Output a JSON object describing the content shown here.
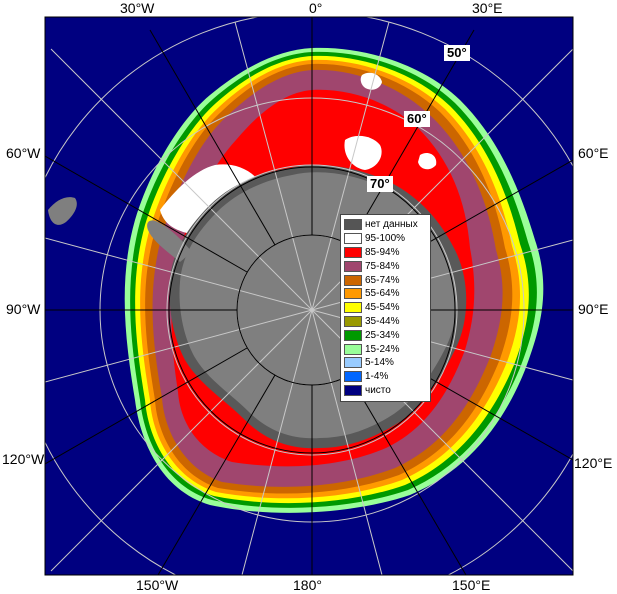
{
  "map": {
    "colors": {
      "ocean": "#000080",
      "land": "#7f7f7f",
      "ice_shelf_dark": "#595959",
      "ice_95_100": "#ffffff",
      "ice_85_94": "#ff0000",
      "ice_75_84": "#a0466e",
      "ice_65_74": "#cc6600",
      "ice_55_64": "#ff9900",
      "ice_45_54": "#ffff00",
      "ice_35_44": "#999900",
      "ice_25_34": "#009900",
      "ice_15_24": "#99ff99",
      "ice_5_14": "#99ccff",
      "ice_1_4": "#0066ff",
      "grid": "#c8c8c8",
      "meridian_major": "#000000"
    },
    "longitude_labels": {
      "w30": "30°W",
      "e0": "0°",
      "e30": "30°E",
      "w60": "60°W",
      "e60": "60°E",
      "w90": "90°W",
      "e90": "90°E",
      "w120": "120°W",
      "e120": "120°E",
      "w150": "150°W",
      "s180": "180°",
      "e150": "150°E"
    },
    "latitude_labels": {
      "lat50": "50°",
      "lat60": "60°",
      "lat70": "70°"
    }
  },
  "legend": {
    "title": "нет данных",
    "items": [
      {
        "label": "нет данных",
        "color": "#555555"
      },
      {
        "label": "95-100%",
        "color": "#ffffff"
      },
      {
        "label": "85-94%",
        "color": "#ff0000"
      },
      {
        "label": "75-84%",
        "color": "#a0466e"
      },
      {
        "label": "65-74%",
        "color": "#cc6600"
      },
      {
        "label": "55-64%",
        "color": "#ff9900"
      },
      {
        "label": "45-54%",
        "color": "#ffff00"
      },
      {
        "label": "35-44%",
        "color": "#999900"
      },
      {
        "label": "25-34%",
        "color": "#009900"
      },
      {
        "label": "15-24%",
        "color": "#99ff99"
      },
      {
        "label": "5-14%",
        "color": "#99ccff"
      },
      {
        "label": "1-4%",
        "color": "#0066ff"
      },
      {
        "label": "чисто",
        "color": "#000080"
      }
    ]
  }
}
